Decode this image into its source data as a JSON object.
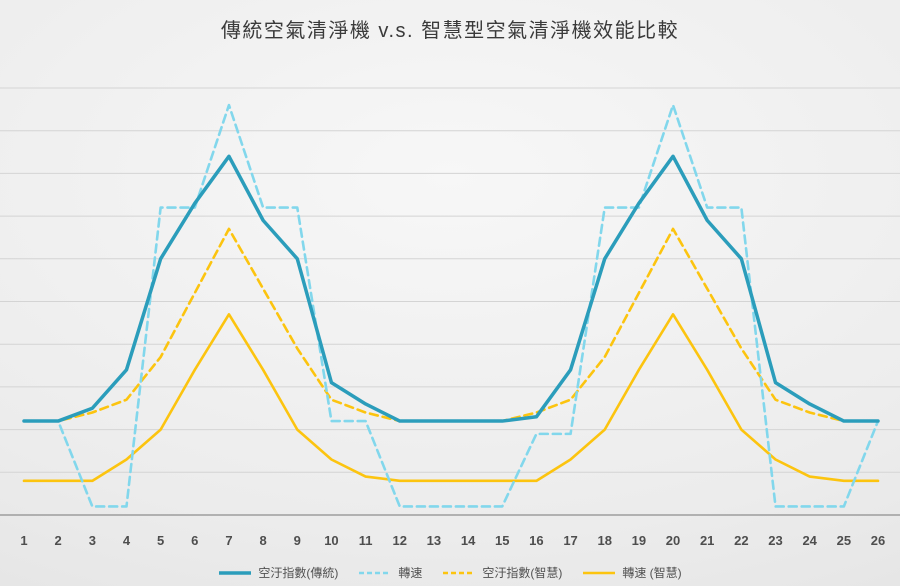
{
  "title": "傳統空氣清淨機 v.s. 智慧型空氣清淨機效能比較",
  "chart_data": {
    "type": "line",
    "title": "傳統空氣清淨機 v.s. 智慧型空氣清淨機效能比較",
    "xlabel": "",
    "ylabel": "",
    "ylim": [
      0,
      100
    ],
    "grid": true,
    "grid_step": 10,
    "legend_position": "bottom",
    "categories": [
      "1",
      "2",
      "3",
      "4",
      "5",
      "6",
      "7",
      "8",
      "9",
      "10",
      "11",
      "12",
      "13",
      "14",
      "15",
      "16",
      "17",
      "18",
      "19",
      "20",
      "21",
      "22",
      "23",
      "24",
      "25",
      "26"
    ],
    "series": [
      {
        "id": "pollution-traditional",
        "name": "空汙指數(傳統)",
        "color": "#2B9DBB",
        "dash": null,
        "width": 3.5,
        "values": [
          22,
          22,
          25,
          34,
          60,
          73,
          84,
          69,
          60,
          31,
          26,
          22,
          22,
          22,
          22,
          23,
          34,
          60,
          73,
          84,
          69,
          60,
          31,
          26,
          22,
          22
        ]
      },
      {
        "id": "speed-traditional",
        "name": "轉速",
        "color": "#82D7EC",
        "dash": "8 5",
        "width": 2.6,
        "values": [
          22,
          22,
          2,
          2,
          72,
          72,
          96,
          72,
          72,
          22,
          22,
          2,
          2,
          2,
          2,
          19,
          19,
          72,
          72,
          96,
          72,
          72,
          2,
          2,
          2,
          22
        ]
      },
      {
        "id": "pollution-smart",
        "name": "空汙指數(智慧)",
        "color": "#FCC40F",
        "dash": "8 5",
        "width": 2.6,
        "values": [
          22,
          22,
          24,
          27,
          37,
          52,
          67,
          53,
          39,
          27,
          24,
          22,
          22,
          22,
          22,
          24,
          27,
          37,
          52,
          67,
          53,
          39,
          27,
          24,
          22,
          22
        ]
      },
      {
        "id": "speed-smart",
        "name": "轉速 (智慧)",
        "color": "#FCC40F",
        "dash": null,
        "width": 2.6,
        "values": [
          8,
          8,
          8,
          13,
          20,
          34,
          47,
          34,
          20,
          13,
          9,
          8,
          8,
          8,
          8,
          8,
          13,
          20,
          34,
          47,
          34,
          20,
          13,
          9,
          8,
          8
        ]
      }
    ]
  },
  "colors": {
    "background_light": "#f7f7f7",
    "background_dark": "#dedede",
    "gridline": "#d4d4d4",
    "axis": "#9d9d9d",
    "title_text": "#3a3a3a",
    "tick_text": "#4e4e4e",
    "legend_text": "#525252",
    "teal": "#2B9DBB",
    "light_blue": "#82D7EC",
    "yellow": "#FCC40F"
  }
}
